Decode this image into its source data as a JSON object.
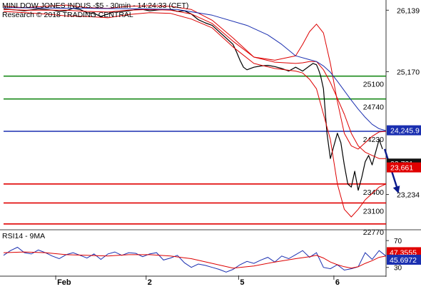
{
  "header": {
    "line1": "MINI DOW JONES INDUS.-$5 - 30min - 14:24:33 (CET)",
    "line2": "Research © 2018 TRADING CENTRAL"
  },
  "colors": {
    "price": "#000000",
    "bollinger": "#dd0000",
    "moving_average": "#1a2fb0",
    "support": "#e00000",
    "resistance": "#1a8a1a",
    "pivot": "#1a2fb0",
    "arrow": "#0a1a8c",
    "price_tag_black": "#111111",
    "price_tag_red": "#e00000",
    "price_tag_blue": "#1a2fb0",
    "rsi_tag_red": "#e00000",
    "rsi_tag_blue": "#1a2fb0"
  },
  "chart_data": [
    {
      "type": "line",
      "title": "",
      "xlabel": "",
      "ylabel": "",
      "ylim": [
        22700,
        26300
      ],
      "xlim": [
        0,
        55
      ],
      "grid": false,
      "x_ticks": [
        {
          "label": "Feb",
          "x": 7.5
        },
        {
          "label": "2",
          "x": 20.5
        },
        {
          "label": "5",
          "x": 33.8
        },
        {
          "label": "6",
          "x": 47.5
        }
      ],
      "y_ticks": [
        26139,
        25170,
        23234
      ],
      "series": [
        {
          "role": "price",
          "x": [
            0,
            1,
            2,
            3,
            4,
            5,
            6,
            7,
            8,
            9,
            10,
            11,
            12,
            13,
            14,
            15,
            16,
            17,
            18,
            19,
            20,
            21,
            22,
            23,
            24,
            25,
            26,
            27,
            28,
            29,
            30,
            31,
            32,
            33,
            33.5,
            34,
            34.5,
            35,
            36,
            37,
            38,
            39,
            40,
            41,
            42,
            43,
            44,
            44.5,
            45,
            45.3,
            45.6,
            46,
            46.5,
            47,
            47.5,
            48,
            48.5,
            49,
            49.5,
            50,
            50.5,
            51,
            51.5,
            52,
            52.5,
            53,
            53.5,
            54,
            54.5
          ],
          "y": [
            26160,
            26150,
            26140,
            26130,
            26145,
            26160,
            26150,
            26140,
            26120,
            26130,
            26170,
            26150,
            26100,
            26090,
            26040,
            26080,
            26120,
            26120,
            26130,
            26150,
            26150,
            26130,
            26140,
            26150,
            26150,
            26120,
            26130,
            26080,
            25990,
            25940,
            25900,
            25800,
            25700,
            25600,
            25480,
            25350,
            25240,
            25200,
            25240,
            25260,
            25270,
            25250,
            25220,
            25180,
            25240,
            25180,
            25260,
            25300,
            25280,
            25200,
            25100,
            24900,
            24200,
            23800,
            24000,
            24200,
            24050,
            23700,
            23400,
            23350,
            23600,
            23300,
            23500,
            23750,
            23850,
            23700,
            23900,
            24100,
            23950
          ],
          "stroke": "#000000"
        },
        {
          "role": "bollinger-upper",
          "x": [
            0,
            3,
            6,
            9,
            12,
            15,
            18,
            21,
            24,
            27,
            30,
            33,
            36,
            39,
            42,
            43,
            44,
            45,
            46,
            47,
            48,
            49,
            50,
            51,
            52,
            53,
            54,
            55
          ],
          "y": [
            26200,
            26180,
            26200,
            26220,
            26180,
            26170,
            26200,
            26210,
            26200,
            26150,
            25980,
            25700,
            25400,
            25350,
            25420,
            25600,
            25800,
            25920,
            25780,
            25300,
            24700,
            24200,
            24000,
            23950,
            24050,
            24150,
            24220,
            24230
          ],
          "stroke": "#dd0000"
        },
        {
          "role": "bollinger-middle",
          "x": [
            0,
            3,
            6,
            9,
            12,
            15,
            18,
            21,
            24,
            27,
            30,
            33,
            36,
            39,
            42,
            43,
            44,
            45,
            46,
            47,
            48,
            49,
            50,
            51,
            52,
            53,
            54,
            55
          ],
          "y": [
            26150,
            26140,
            26140,
            26140,
            26120,
            26110,
            26140,
            26150,
            26140,
            26080,
            25930,
            25650,
            25400,
            25320,
            25300,
            25310,
            25330,
            25330,
            25200,
            25000,
            24750,
            24500,
            24200,
            24000,
            23900,
            23850,
            23800,
            23800
          ],
          "stroke": "#dd0000"
        },
        {
          "role": "bollinger-lower",
          "x": [
            0,
            3,
            6,
            9,
            12,
            15,
            18,
            21,
            24,
            27,
            30,
            33,
            36,
            39,
            42,
            43,
            44,
            45,
            46,
            47,
            48,
            49,
            50,
            51,
            52,
            53,
            54,
            55
          ],
          "y": [
            26120,
            26100,
            26080,
            26050,
            26040,
            26020,
            26070,
            26100,
            26090,
            26000,
            25860,
            25560,
            25300,
            25220,
            25180,
            25150,
            25050,
            24900,
            24500,
            24100,
            23400,
            23000,
            22880,
            23000,
            23150,
            23250,
            23350,
            23400
          ],
          "stroke": "#dd0000"
        },
        {
          "role": "moving-average",
          "x": [
            0,
            5,
            10,
            15,
            20,
            25,
            30,
            35,
            38,
            40,
            42,
            44,
            45,
            46,
            47,
            48,
            49,
            50,
            51,
            52,
            53,
            54,
            55
          ],
          "y": [
            26180,
            26175,
            26170,
            26165,
            26160,
            26150,
            26060,
            25900,
            25750,
            25600,
            25420,
            25360,
            25330,
            25260,
            25160,
            25020,
            24870,
            24720,
            24580,
            24450,
            24340,
            24270,
            24240
          ],
          "stroke": "#1a2fb0"
        }
      ],
      "horizontal_levels": [
        {
          "value": 25100,
          "label": "25100",
          "kind": "resistance"
        },
        {
          "value": 24740,
          "label": "24740",
          "kind": "resistance"
        },
        {
          "value": 24230,
          "label": "24230",
          "kind": "pivot"
        },
        {
          "value": 23400,
          "label": "23400",
          "kind": "support"
        },
        {
          "value": 23100,
          "label": "23100",
          "kind": "support"
        },
        {
          "value": 22770,
          "label": "22770",
          "kind": "support"
        }
      ],
      "forecast_arrow": {
        "from": [
          54.8,
          23950
        ],
        "to": [
          56.8,
          23250
        ]
      },
      "price_tags": [
        {
          "value": 24245.9,
          "label": "24,245.9",
          "kind": "blue"
        },
        {
          "value": 23721,
          "label": "23,721",
          "kind": "black"
        },
        {
          "value": 23661,
          "label": "23,661",
          "kind": "red"
        }
      ]
    },
    {
      "type": "line",
      "title": "RSI14 - 9MA",
      "ylim": [
        18,
        84
      ],
      "xlim": [
        0,
        55
      ],
      "y_ticks": [
        70,
        30
      ],
      "series": [
        {
          "role": "rsi",
          "x": [
            0,
            1,
            2,
            3,
            4,
            5,
            6,
            7,
            8,
            9,
            10,
            11,
            12,
            13,
            14,
            15,
            16,
            17,
            18,
            19,
            20,
            21,
            22,
            23,
            24,
            25,
            26,
            27,
            28,
            29,
            30,
            31,
            32,
            33,
            34,
            35,
            36,
            37,
            38,
            39,
            40,
            41,
            42,
            43,
            44,
            45,
            46,
            47,
            48,
            49,
            50,
            51,
            52,
            53,
            54,
            55
          ],
          "y": [
            48,
            55,
            60,
            52,
            50,
            56,
            52,
            47,
            43,
            49,
            52,
            48,
            44,
            50,
            42,
            50,
            53,
            48,
            52,
            51,
            46,
            50,
            52,
            41,
            44,
            48,
            37,
            30,
            35,
            33,
            30,
            27,
            23,
            27,
            34,
            39,
            36,
            41,
            45,
            38,
            47,
            43,
            49,
            55,
            45,
            52,
            30,
            28,
            34,
            26,
            28,
            31,
            52,
            42,
            55,
            47
          ],
          "stroke": "#1a2fb0"
        },
        {
          "role": "rsi-ma",
          "x": [
            0,
            3,
            6,
            9,
            12,
            15,
            18,
            21,
            24,
            27,
            30,
            33,
            36,
            39,
            42,
            44,
            45,
            46,
            47,
            48,
            49,
            50,
            51,
            52,
            53,
            54,
            55
          ],
          "y": [
            52,
            53,
            52,
            49,
            48,
            47,
            49,
            49,
            47,
            43,
            36,
            29,
            32,
            38,
            43,
            46,
            48,
            44,
            38,
            34,
            31,
            29,
            31,
            36,
            40,
            45,
            47
          ],
          "stroke": "#dd0000"
        }
      ],
      "rsi_tags": [
        {
          "value": 47.3555,
          "label": "47.3555",
          "kind": "red"
        },
        {
          "value": 45.6972,
          "label": "45.6972",
          "kind": "blue"
        }
      ]
    }
  ]
}
